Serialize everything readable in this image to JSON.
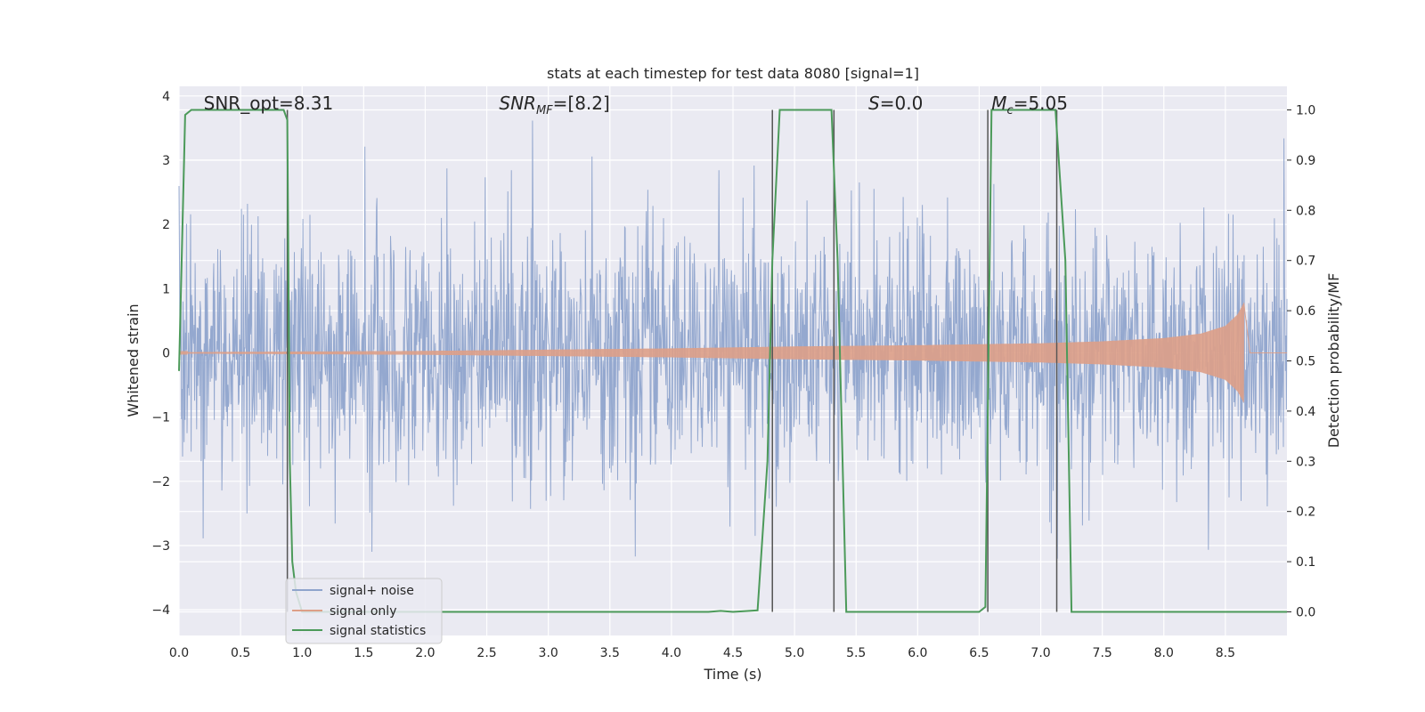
{
  "chart_data": {
    "type": "line",
    "title": "stats at each timestep for test data 8080 [signal=1]",
    "xlabel": "Time (s)",
    "ylabel": "Whitened strain",
    "ylabel_right": "Detection probability/MF",
    "xlim": [
      0.0,
      9.0
    ],
    "ylim": [
      -4.4,
      4.15
    ],
    "ylim_right": [
      -0.047,
      1.047
    ],
    "x_ticks": [
      0.0,
      0.5,
      1.0,
      1.5,
      2.0,
      2.5,
      3.0,
      3.5,
      4.0,
      4.5,
      5.0,
      5.5,
      6.0,
      6.5,
      7.0,
      7.5,
      8.0,
      8.5
    ],
    "x_tick_labels": [
      "0.0",
      "0.5",
      "1.0",
      "1.5",
      "2.0",
      "2.5",
      "3.0",
      "3.5",
      "4.0",
      "4.5",
      "5.0",
      "5.5",
      "6.0",
      "6.5",
      "7.0",
      "7.5",
      "8.0",
      "8.5"
    ],
    "y_ticks": [
      4,
      3,
      2,
      1,
      0,
      -1,
      -2,
      -3,
      -4
    ],
    "y_tick_labels": [
      "4",
      "3",
      "2",
      "1",
      "0",
      "−1",
      "−2",
      "−3",
      "−4"
    ],
    "y_ticks_right": [
      1.0,
      0.9,
      0.8,
      0.7,
      0.6,
      0.5,
      0.4,
      0.3,
      0.2,
      0.1,
      0.0
    ],
    "y_tick_labels_right": [
      "1.0",
      "0.9",
      "0.8",
      "0.7",
      "0.6",
      "0.5",
      "0.4",
      "0.3",
      "0.2",
      "0.1",
      "0.0"
    ],
    "grid": true,
    "legend_position": "lower-left",
    "annotations": [
      {
        "text": "SNR_opt=8.31",
        "x": 0.2
      },
      {
        "text_main": "SNR",
        "text_sub": "MF",
        "text_tail": "=[8.2]",
        "x": 2.6
      },
      {
        "text_main": "S",
        "text_tail": "=0.0",
        "x": 5.6
      },
      {
        "text_main": "M",
        "text_sub": "c",
        "text_tail": "=5.05",
        "x": 6.6
      }
    ],
    "series": [
      {
        "name": "signal+ noise",
        "color": "#8fa4cc",
        "kind": "noise",
        "x_range": [
          0.0,
          9.0
        ],
        "amplitude_typical": 1.4,
        "amplitude_max": 3.9
      },
      {
        "name": "signal only",
        "color": "#dd9f87",
        "kind": "chirp",
        "x_range": [
          0.0,
          8.65
        ],
        "envelope": {
          "x": [
            0.0,
            2.0,
            3.0,
            4.0,
            5.0,
            6.0,
            7.0,
            7.5,
            8.0,
            8.3,
            8.5,
            8.6,
            8.65
          ],
          "y": [
            0.01,
            0.03,
            0.05,
            0.07,
            0.1,
            0.12,
            0.15,
            0.18,
            0.23,
            0.3,
            0.42,
            0.6,
            0.78
          ]
        }
      },
      {
        "name": "signal statistics",
        "color": "#4c9a5a",
        "axis": "right",
        "x": [
          0.0,
          0.05,
          0.1,
          0.85,
          0.88,
          0.9,
          0.92,
          0.95,
          1.0,
          4.3,
          4.4,
          4.5,
          4.7,
          4.78,
          4.82,
          4.88,
          5.3,
          5.35,
          5.42,
          6.5,
          6.55,
          6.6,
          6.65,
          7.12,
          7.2,
          7.25,
          9.0
        ],
        "values": [
          0.48,
          0.99,
          1.0,
          1.0,
          0.98,
          0.3,
          0.1,
          0.04,
          0.0,
          0.0,
          0.002,
          0.0,
          0.003,
          0.3,
          0.7,
          1.0,
          1.0,
          0.7,
          0.0,
          0.0,
          0.01,
          1.0,
          1.0,
          1.0,
          0.7,
          0.0,
          0.0
        ]
      }
    ],
    "vertical_markers": {
      "color": "#555555",
      "x": [
        0.88,
        4.82,
        5.32,
        6.57,
        7.13
      ],
      "top": 1.0,
      "bottom": 0.0
    }
  }
}
